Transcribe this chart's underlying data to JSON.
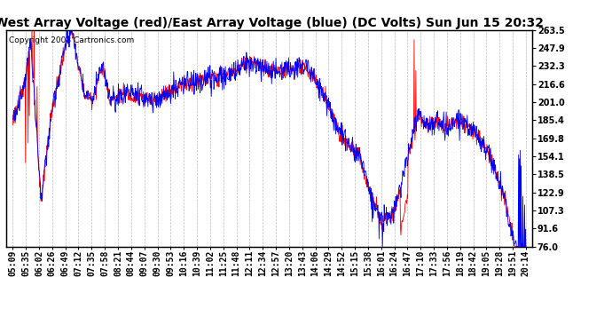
{
  "title": "West Array Voltage (red)/East Array Voltage (blue) (DC Volts) Sun Jun 15 20:32",
  "copyright": "Copyright 2008 Cartronics.com",
  "ylabel_right_values": [
    263.5,
    247.9,
    232.3,
    216.6,
    201.0,
    185.4,
    169.8,
    154.1,
    138.5,
    122.9,
    107.3,
    91.6,
    76.0
  ],
  "ymin": 76.0,
  "ymax": 263.5,
  "x_labels": [
    "05:09",
    "05:35",
    "06:02",
    "06:26",
    "06:49",
    "07:12",
    "07:35",
    "07:58",
    "08:21",
    "08:44",
    "09:07",
    "09:30",
    "09:53",
    "10:16",
    "10:39",
    "11:02",
    "11:25",
    "11:48",
    "12:11",
    "12:34",
    "12:57",
    "13:20",
    "13:43",
    "14:06",
    "14:29",
    "14:52",
    "15:15",
    "15:38",
    "16:01",
    "16:24",
    "16:47",
    "17:10",
    "17:33",
    "17:56",
    "18:19",
    "18:42",
    "19:05",
    "19:28",
    "19:51",
    "20:14"
  ],
  "background_color": "#ffffff",
  "grid_color": "#aaaaaa",
  "line_color_red": "#ff0000",
  "line_color_blue": "#0000ff",
  "title_fontsize": 10,
  "tick_fontsize": 7,
  "copyright_fontsize": 6.5
}
